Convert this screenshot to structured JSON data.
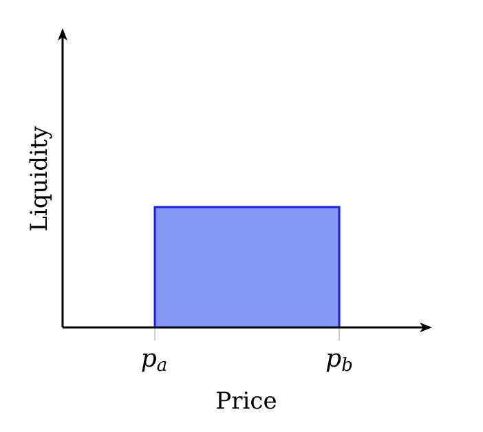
{
  "chart_data": {
    "type": "area",
    "xlabel": "Price",
    "ylabel": "Liquidity",
    "x_ticks": [
      {
        "base": "p",
        "sub": "a"
      },
      {
        "base": "p",
        "sub": "b"
      }
    ],
    "series": [
      {
        "from": "pa",
        "to": "pb",
        "value": 1,
        "fill": "#8597f5",
        "stroke": "#1a1af2"
      }
    ],
    "grid": false,
    "legend": "none",
    "colors": {
      "axis": "#000000",
      "fill": "#8597f5",
      "stroke": "#1a1af2",
      "tick": "#bdbdbd"
    }
  }
}
